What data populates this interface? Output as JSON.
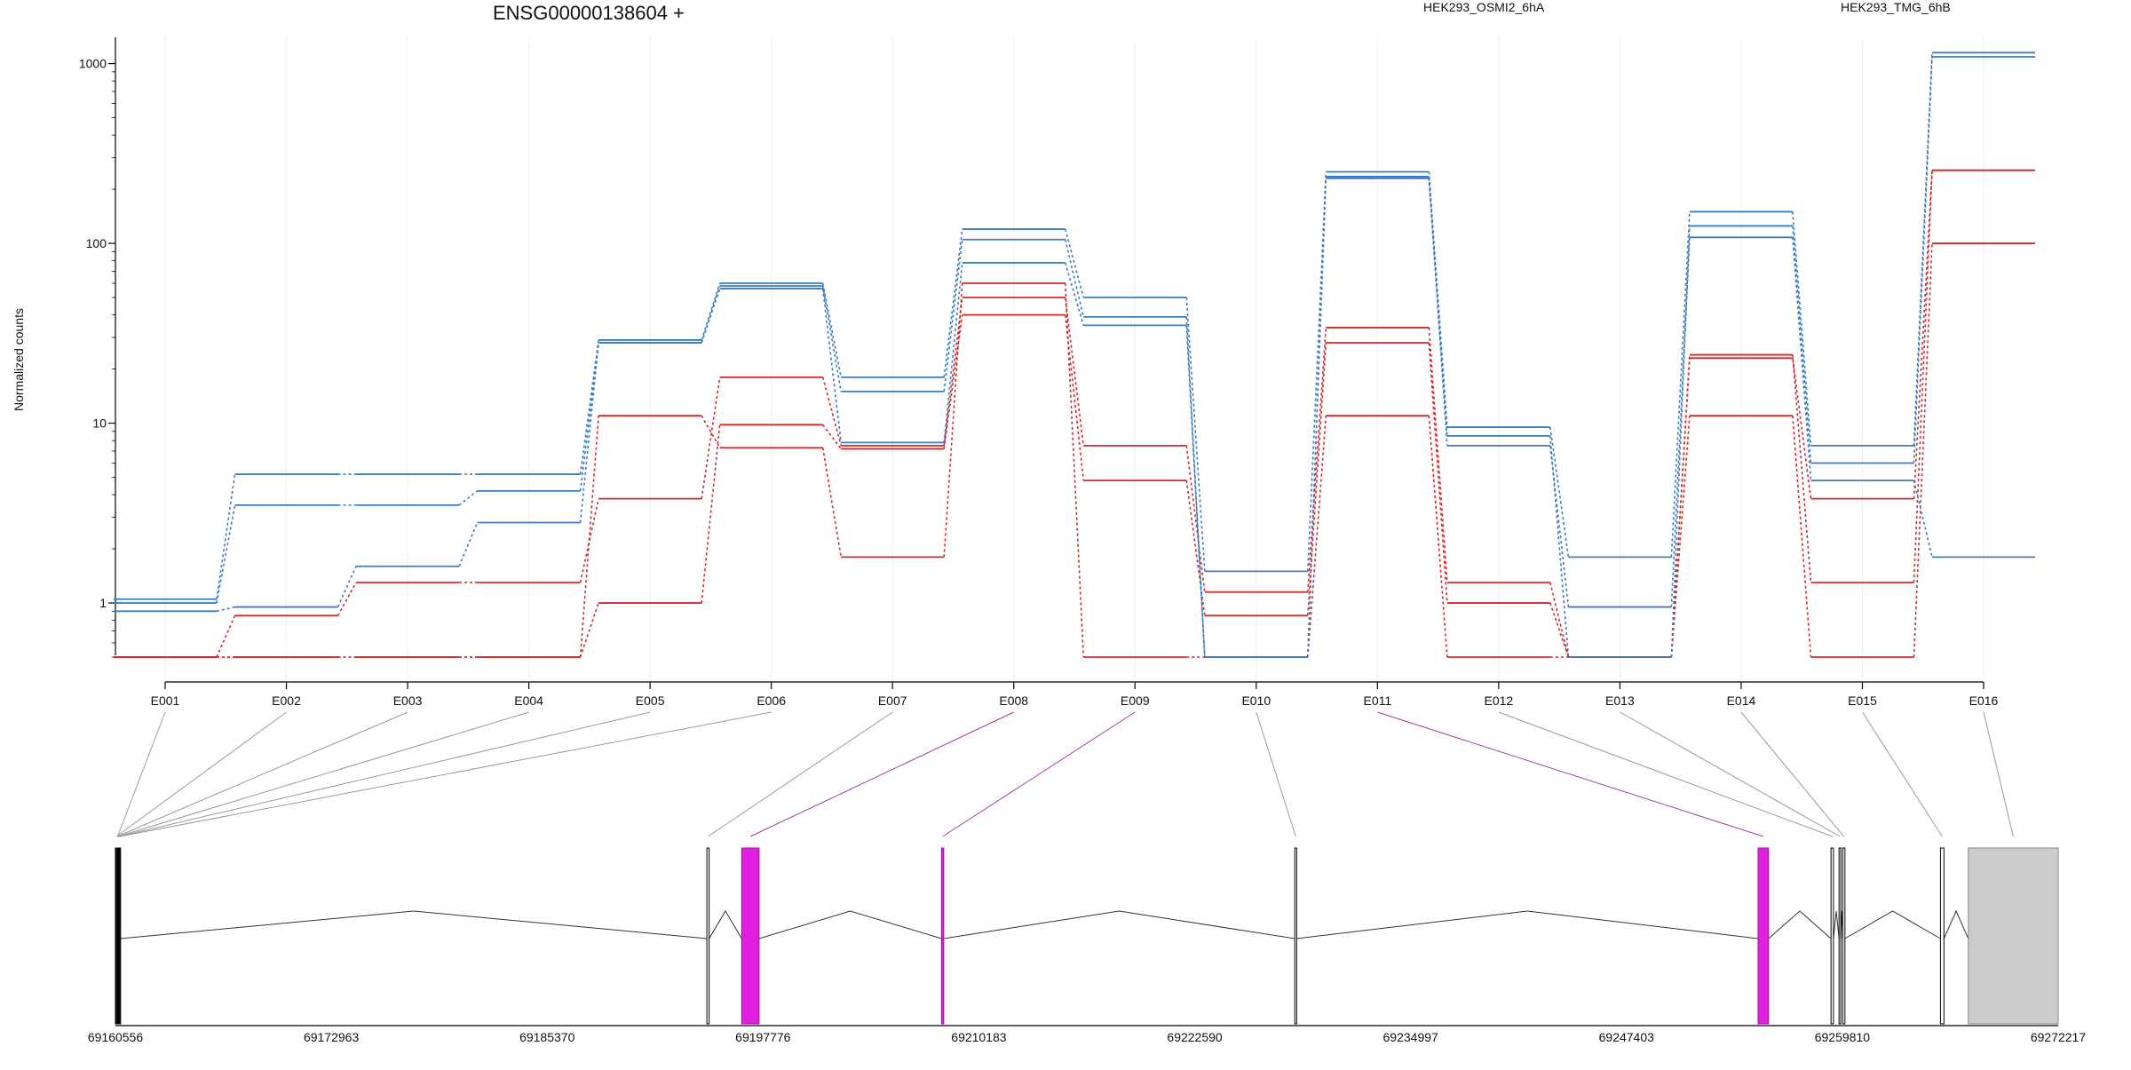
{
  "chart_data": {
    "type": "line",
    "title": "ENSG00000138604 +",
    "ylabel": "Normalized counts",
    "xlabel": "",
    "y_scale": "log",
    "y_ticks": [
      1,
      10,
      100,
      1000
    ],
    "y_tick_labels": [
      "1",
      "10",
      "100",
      "1000"
    ],
    "ylim": [
      0.5,
      1400
    ],
    "grid": true,
    "legend_position": "top-right",
    "categories": [
      "E001",
      "E002",
      "E003",
      "E004",
      "E005",
      "E006",
      "E007",
      "E008",
      "E009",
      "E010",
      "E011",
      "E012",
      "E013",
      "E014",
      "E015",
      "E016"
    ],
    "groups": [
      {
        "name": "HEK293_OSMI2_6hA",
        "color": "#d62728"
      },
      {
        "name": "HEK293_TMG_6hB",
        "color": "#3b7bbf"
      }
    ],
    "series": [
      {
        "group": 0,
        "values": [
          0.5,
          0.85,
          1.3,
          1.3,
          3.8,
          18,
          7.5,
          50,
          7.5,
          1.15,
          34,
          1.3,
          0.5,
          24,
          1.3,
          255
        ]
      },
      {
        "group": 0,
        "values": [
          0.5,
          0.5,
          0.5,
          0.5,
          11,
          7.3,
          1.8,
          60,
          0.5,
          0.5,
          11,
          0.5,
          0.5,
          23,
          3.8,
          255
        ]
      },
      {
        "group": 0,
        "values": [
          0.5,
          0.5,
          0.5,
          0.5,
          1.0,
          9.8,
          7.2,
          40,
          4.8,
          0.85,
          28,
          1.0,
          0.5,
          11,
          0.5,
          100
        ]
      },
      {
        "group": 1,
        "values": [
          1.05,
          5.2,
          5.2,
          5.2,
          29,
          60,
          18,
          120,
          50,
          1.5,
          250,
          9.5,
          1.8,
          150,
          7.5,
          1150
        ]
      },
      {
        "group": 1,
        "values": [
          1.0,
          3.5,
          3.5,
          4.2,
          28,
          58,
          15,
          105,
          39,
          0.5,
          235,
          8.5,
          0.5,
          125,
          6.0,
          1090
        ]
      },
      {
        "group": 1,
        "values": [
          0.9,
          0.95,
          1.6,
          2.8,
          28,
          56,
          7.8,
          78,
          35,
          0.5,
          230,
          7.5,
          0.95,
          108,
          4.8,
          1.8
        ]
      }
    ],
    "gene_model": {
      "coord_start": 69160556,
      "coord_end": 69272217,
      "axis_labels": [
        "69160556",
        "69172963",
        "69185370",
        "69197776",
        "69210183",
        "69222590",
        "69234997",
        "69247403",
        "69259810",
        "69272217"
      ],
      "exons": [
        {
          "id": "E001",
          "start": 69160556,
          "end": 69160800,
          "highlight": false
        },
        {
          "id": "E002",
          "start": 69160560,
          "end": 69160620,
          "highlight": false
        },
        {
          "id": "E003",
          "start": 69160600,
          "end": 69160680,
          "highlight": false
        },
        {
          "id": "E004",
          "start": 69160650,
          "end": 69160720,
          "highlight": false
        },
        {
          "id": "E005",
          "start": 69160700,
          "end": 69160780,
          "highlight": false
        },
        {
          "id": "E006",
          "start": 69160750,
          "end": 69160820,
          "highlight": false
        },
        {
          "id": "E007",
          "start": 69194550,
          "end": 69194680,
          "highlight": false
        },
        {
          "id": "E008",
          "start": 69196550,
          "end": 69197550,
          "highlight": true
        },
        {
          "id": "E009",
          "start": 69208040,
          "end": 69208160,
          "highlight": true
        },
        {
          "id": "E010",
          "start": 69228340,
          "end": 69228450,
          "highlight": false
        },
        {
          "id": "E011",
          "start": 69254970,
          "end": 69255570,
          "highlight": true
        },
        {
          "id": "E012",
          "start": 69259160,
          "end": 69259300,
          "highlight": false
        },
        {
          "id": "E013",
          "start": 69259620,
          "end": 69259720,
          "highlight": false
        },
        {
          "id": "E014",
          "start": 69259830,
          "end": 69259960,
          "highlight": false
        },
        {
          "id": "E015",
          "start": 69265450,
          "end": 69265650,
          "highlight": false
        },
        {
          "id": "E016",
          "start": 69267050,
          "end": 69272217,
          "highlight": false,
          "utr": true
        }
      ],
      "highlight_color": "#e020e0",
      "utr_color": "#cccccc"
    }
  }
}
